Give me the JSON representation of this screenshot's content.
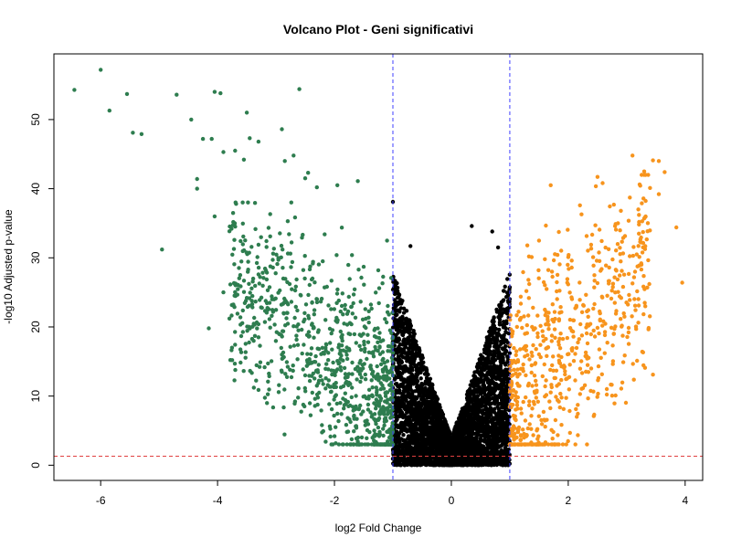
{
  "chart_data": {
    "type": "scatter",
    "title": "Volcano Plot - Geni significativi",
    "xlabel": "log2 Fold Change",
    "ylabel": "-log10 Adjusted p-value",
    "xlim": [
      -6.8,
      4.3
    ],
    "ylim": [
      -2.2,
      59.5
    ],
    "xticks": [
      -6,
      -4,
      -2,
      0,
      2,
      4
    ],
    "yticks": [
      0,
      10,
      20,
      30,
      40,
      50
    ],
    "grid": false,
    "legend": "none",
    "thresholds": {
      "log2fc": [
        -1,
        1
      ],
      "neg_log10_padj": 1.3
    },
    "colors": {
      "down": "#2e7d4f",
      "up": "#f7941d",
      "ns": "#000000",
      "vline": "#4040ff",
      "hline": "#e04040"
    },
    "series": [
      {
        "key": "down",
        "points": [
          [
            -6.45,
            54.3
          ],
          [
            -6.0,
            57.2
          ],
          [
            -5.85,
            51.3
          ],
          [
            -5.55,
            53.7
          ],
          [
            -5.45,
            48.1
          ],
          [
            -5.3,
            47.9
          ],
          [
            -4.95,
            31.2
          ],
          [
            -4.7,
            53.6
          ],
          [
            -4.45,
            50.0
          ],
          [
            -4.35,
            41.4
          ],
          [
            -4.35,
            40.0
          ],
          [
            -4.25,
            47.2
          ],
          [
            -4.1,
            47.2
          ],
          [
            -4.15,
            19.8
          ],
          [
            -4.05,
            54.0
          ],
          [
            -4.05,
            36.0
          ],
          [
            -3.95,
            53.8
          ],
          [
            -3.9,
            45.3
          ],
          [
            -3.5,
            51.0
          ],
          [
            -3.45,
            47.3
          ],
          [
            -3.3,
            46.8
          ],
          [
            -2.9,
            48.6
          ],
          [
            -2.6,
            54.4
          ],
          [
            -2.85,
            44.0
          ],
          [
            -2.5,
            41.5
          ],
          [
            -2.45,
            42.3
          ],
          [
            -2.3,
            40.2
          ],
          [
            -1.95,
            40.5
          ],
          [
            -1.6,
            41.1
          ],
          [
            -1.1,
            32.5
          ],
          [
            -1.7,
            30.4
          ],
          [
            -1.25,
            28.2
          ],
          [
            -2.5,
            13.0
          ],
          [
            -2.3,
            11.5
          ],
          [
            -1.9,
            9.0
          ],
          [
            -3.9,
            25.0
          ],
          [
            -3.5,
            24.2
          ],
          [
            -3.3,
            27.6
          ],
          [
            -3.1,
            33.1
          ],
          [
            -2.8,
            35.3
          ],
          [
            -2.2,
            29.5
          ],
          [
            -1.5,
            28.7
          ],
          [
            -2.9,
            16.0
          ],
          [
            -3.3,
            18.5
          ],
          [
            -2.7,
            20.1
          ],
          [
            -3.7,
            45.5
          ],
          [
            -3.55,
            44.2
          ],
          [
            -2.9,
            13.5
          ],
          [
            -2.7,
            44.8
          ],
          [
            -2.05,
            26.7
          ]
        ],
        "cloud": {
          "xmin": -3.8,
          "xmax": -1.0,
          "ymin": 3,
          "ymax": 38,
          "n": 900
        }
      },
      {
        "key": "up",
        "points": [
          [
            3.1,
            44.8
          ],
          [
            3.3,
            42.5
          ],
          [
            3.45,
            44.1
          ],
          [
            3.55,
            44.0
          ],
          [
            3.65,
            42.4
          ],
          [
            3.4,
            40.1
          ],
          [
            3.55,
            39.2
          ],
          [
            3.85,
            34.4
          ],
          [
            3.95,
            26.4
          ],
          [
            3.45,
            13.1
          ],
          [
            3.1,
            26.3
          ],
          [
            2.7,
            28.6
          ],
          [
            2.9,
            36.8
          ],
          [
            2.5,
            41.7
          ],
          [
            2.2,
            37.6
          ],
          [
            1.7,
            40.5
          ],
          [
            1.5,
            32.5
          ],
          [
            1.3,
            31.8
          ],
          [
            1.6,
            29.8
          ],
          [
            2.0,
            30.1
          ],
          [
            2.45,
            26.7
          ],
          [
            2.8,
            34.6
          ],
          [
            3.2,
            37.0
          ],
          [
            1.2,
            7.5
          ],
          [
            1.1,
            10.0
          ],
          [
            1.45,
            16.8
          ],
          [
            2.35,
            20.2
          ],
          [
            2.85,
            35.0
          ]
        ],
        "cloud": {
          "xmin": 1.0,
          "xmax": 3.4,
          "ymin": 3,
          "ymax": 42,
          "n": 650
        }
      },
      {
        "key": "ns",
        "points": [
          [
            -1.0,
            38.1
          ],
          [
            -0.7,
            31.7
          ],
          [
            0.35,
            34.6
          ],
          [
            0.7,
            33.8
          ],
          [
            0.8,
            31.5
          ]
        ],
        "cloud": {
          "xmin": -1.0,
          "xmax": 1.0,
          "ymin": 0,
          "ymax": 30,
          "n": 4200
        }
      }
    ]
  }
}
